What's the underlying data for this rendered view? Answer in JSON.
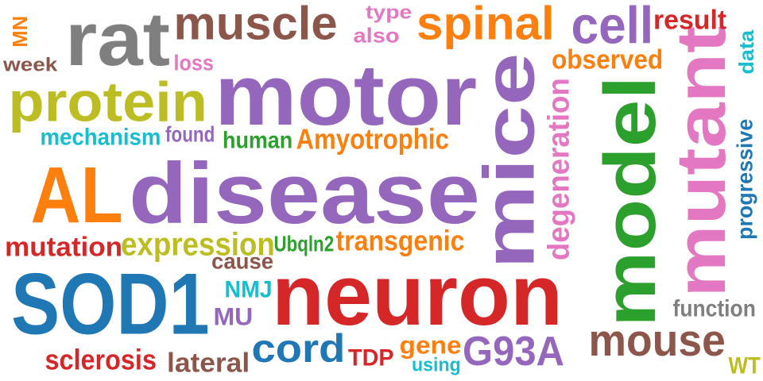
{
  "words": [
    {
      "text": "neuron",
      "color": "#d62728"
    },
    {
      "text": "disease",
      "color": "#9467bd"
    },
    {
      "text": "motor",
      "color": "#9467bd"
    },
    {
      "text": "mice",
      "color": "#9467bd"
    },
    {
      "text": "SOD1",
      "color": "#1f77b4"
    },
    {
      "text": "AL",
      "color": "#ff7f0e"
    },
    {
      "text": "model",
      "color": "#2ca02c"
    },
    {
      "text": "mutant",
      "color": "#e377c2"
    },
    {
      "text": "rat",
      "color": "#7f7f7f"
    },
    {
      "text": "protein",
      "color": "#bcbd22"
    },
    {
      "text": "muscle",
      "color": "#8c564b"
    },
    {
      "text": "cell",
      "color": "#9467bd"
    },
    {
      "text": "spinal",
      "color": "#ff7f0e"
    },
    {
      "text": "mouse",
      "color": "#8c564b"
    },
    {
      "text": "G93A",
      "color": "#9467bd"
    },
    {
      "text": "cord",
      "color": "#1f77b4"
    },
    {
      "text": "expression",
      "color": "#bcbd22"
    },
    {
      "text": "degeneration",
      "color": "#e377c2"
    },
    {
      "text": "Amyotrophic",
      "color": "#ff7f0e"
    },
    {
      "text": "transgenic",
      "color": "#ff7f0e"
    },
    {
      "text": "mutation",
      "color": "#d62728"
    },
    {
      "text": "sclerosis",
      "color": "#d62728"
    },
    {
      "text": "observed",
      "color": "#ff7f0e"
    },
    {
      "text": "result",
      "color": "#d62728"
    },
    {
      "text": "lateral",
      "color": "#8c564b"
    },
    {
      "text": "mechanism",
      "color": "#17becf"
    },
    {
      "text": "function",
      "color": "#7f7f7f"
    },
    {
      "text": "progressive",
      "color": "#1f77b4"
    },
    {
      "text": "human",
      "color": "#2ca02c"
    },
    {
      "text": "gene",
      "color": "#ff7f0e"
    },
    {
      "text": "TDP",
      "color": "#d62728"
    },
    {
      "text": "Ubqln2",
      "color": "#2ca02c"
    },
    {
      "text": "NMJ",
      "color": "#17becf"
    },
    {
      "text": "MU",
      "color": "#9467bd"
    },
    {
      "text": "cause",
      "color": "#8c564b"
    },
    {
      "text": "found",
      "color": "#9467bd"
    },
    {
      "text": "loss",
      "color": "#e377c2"
    },
    {
      "text": "type",
      "color": "#e377c2"
    },
    {
      "text": "also",
      "color": "#e377c2"
    },
    {
      "text": "week",
      "color": "#8c564b"
    },
    {
      "text": "MN",
      "color": "#ff7f0e"
    },
    {
      "text": "data",
      "color": "#17becf"
    },
    {
      "text": "using",
      "color": "#17becf"
    },
    {
      "text": "WT",
      "color": "#bcbd22"
    }
  ]
}
